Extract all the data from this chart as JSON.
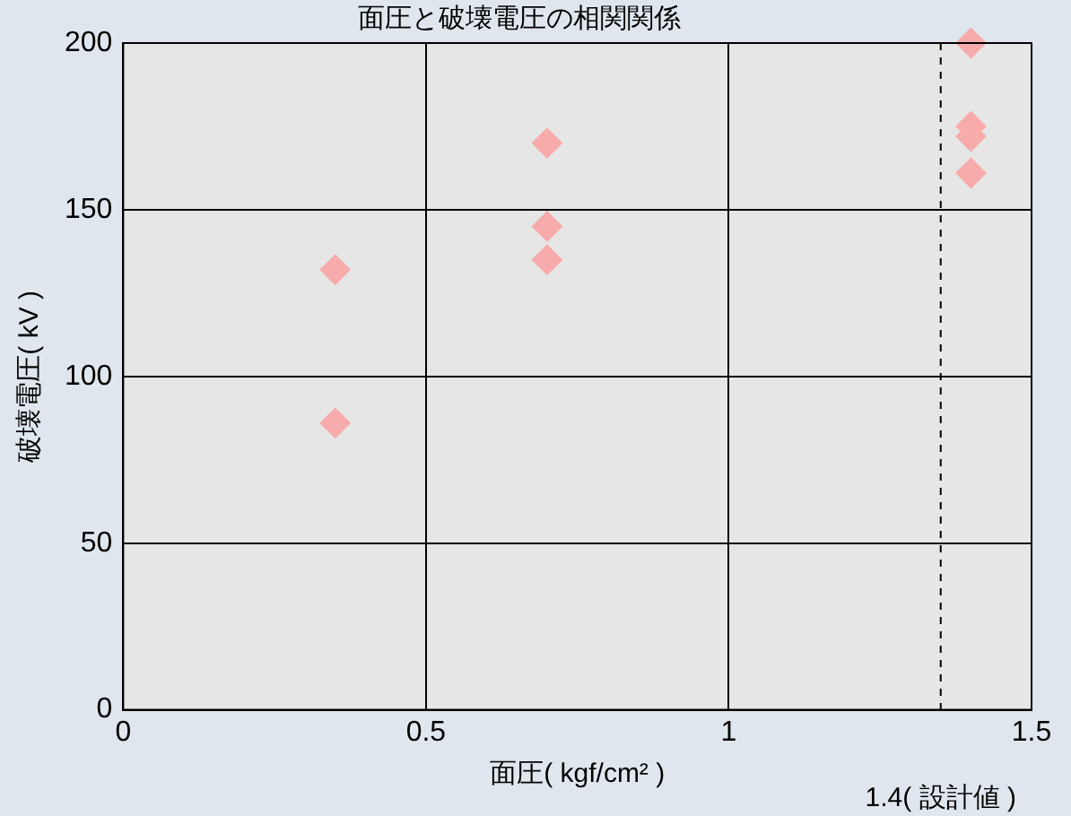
{
  "chart_data": {
    "type": "scatter",
    "title": "面圧と破壊電圧の相関関係",
    "xlabel": "面圧( kgf/cm² )",
    "ylabel": "破壊電圧( kV )",
    "x": [
      0.35,
      0.35,
      0.7,
      0.7,
      0.7,
      1.4,
      1.4,
      1.4,
      1.4
    ],
    "series": [
      {
        "color": "#f7abab",
        "values": [
          132,
          86,
          170,
          145,
          135,
          200,
          175,
          172,
          161
        ]
      }
    ],
    "xlim": [
      0,
      1.5
    ],
    "xticks": [
      0,
      0.5,
      1,
      1.5
    ],
    "ylim": [
      0,
      200
    ],
    "yticks": [
      0,
      50,
      100,
      150,
      200
    ],
    "grid": true,
    "legend": false,
    "marker": "diamond",
    "ref_lines": [
      {
        "axis": "x",
        "value": 1.35,
        "label": "1.4( 設計値 )",
        "color": "#000000",
        "line_style": "dashed"
      }
    ]
  }
}
